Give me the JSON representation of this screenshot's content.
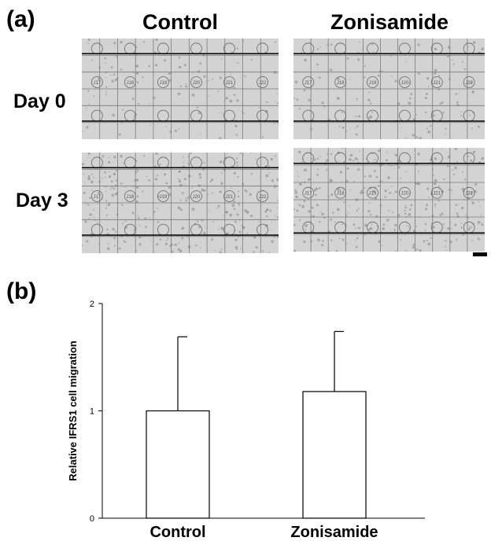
{
  "panel_a": {
    "label": "(a)",
    "columns": [
      "Control",
      "Zonisamide"
    ],
    "rows": [
      "Day 0",
      "Day 3"
    ],
    "grid_labels": {
      "control_day0": [
        "J17",
        "J18",
        "J19",
        "J20",
        "J21",
        "J22"
      ],
      "zonisamide_day0": [
        "J17",
        "J18",
        "J19",
        "J20",
        "J21",
        "J22"
      ],
      "control_day3": [
        "J17",
        "J18",
        "J19",
        "J20",
        "J21",
        "J22"
      ],
      "zonisamide_day3": [
        "J17",
        "J18",
        "J19",
        "J20",
        "J21",
        "J22"
      ]
    }
  },
  "panel_b": {
    "label": "(b)"
  },
  "chart_data": {
    "type": "bar",
    "categories": [
      "Control",
      "Zonisamide"
    ],
    "values": [
      1.0,
      1.18
    ],
    "error_upper": [
      0.69,
      0.56
    ],
    "ylabel": "Relative IFRS1 cell migration",
    "xlabel": "",
    "ylim": [
      0,
      2
    ],
    "yticks": [
      "0",
      "1",
      "2"
    ],
    "bar_color": "#ffffff",
    "edge_color": "#000000",
    "grid": false
  }
}
